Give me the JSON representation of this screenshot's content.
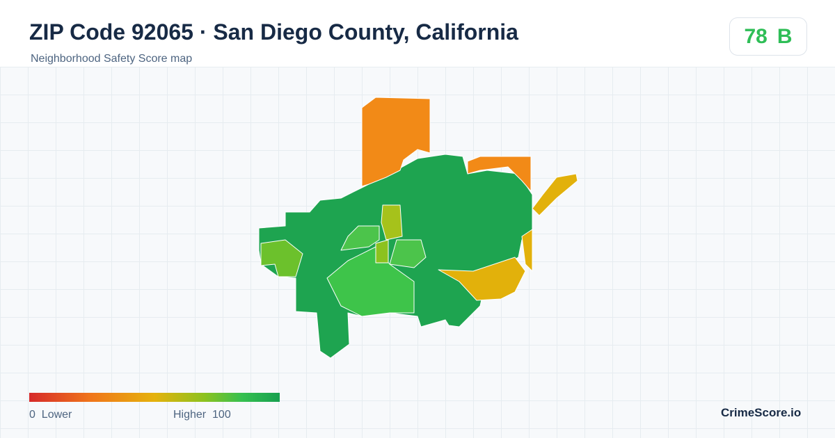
{
  "header": {
    "title": "ZIP Code 92065 · San Diego County, California",
    "subtitle": "Neighborhood Safety Score map"
  },
  "score": {
    "value": 78,
    "grade": "B"
  },
  "legend": {
    "min": 0,
    "min_label": "Lower",
    "max_label": "Higher",
    "max": 100
  },
  "brand": "CrimeScore.io"
}
